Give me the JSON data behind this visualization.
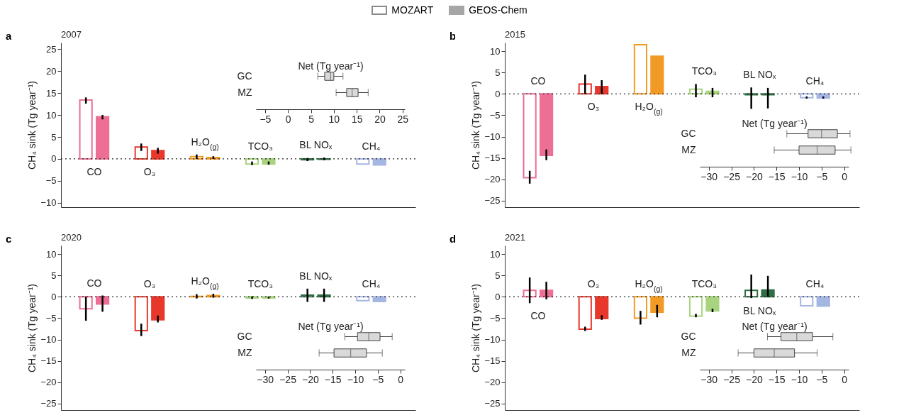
{
  "chart_data": [
    {
      "type": "bar",
      "title": "2007",
      "annotations": [
        "a"
      ],
      "legend": "top",
      "tick_labels": "y",
      "ylabel": "CH₄ sink (Tg year⁻¹)",
      "categories": [
        "CO",
        "O₃",
        "H₂O$_{(g)}$",
        "TCO₃",
        "BL NOₓ",
        "CH₄"
      ],
      "ylim": [
        -11,
        26.5
      ],
      "yticks": [
        -10,
        -5,
        0,
        5,
        10,
        15,
        20,
        25
      ],
      "ref_lines": [
        {
          "axis": "y",
          "value": 0,
          "line_style": "dotted"
        }
      ],
      "series": [
        {
          "name": "MOZART",
          "color": "#8c8c8c",
          "colors": [
            "#ee6f95",
            "#e8382c",
            "#f29a26",
            "#a8d47f",
            "#2f6f45",
            "#a5b6e3"
          ],
          "values": [
            13.4,
            2.7,
            0.5,
            -1.2,
            -0.2,
            -1.2
          ],
          "errors": [
            [
              12.6,
              14
            ],
            [
              1.8,
              3.5
            ],
            [
              0,
              1
            ],
            [
              -1.4,
              -0.6
            ],
            [
              -0.5,
              0.2
            ],
            null
          ]
        },
        {
          "name": "GEOS-Chem",
          "color": "#a6a6a6",
          "colors": [
            "#ee6f95",
            "#e8382c",
            "#f29a26",
            "#a8d47f",
            "#2f6f45",
            "#a5b6e3"
          ],
          "values": [
            9.6,
            1.9,
            0.3,
            -1.2,
            -0.1,
            -1.4
          ],
          "errors": [
            [
              9,
              10
            ],
            [
              1.2,
              2.5
            ],
            [
              0,
              0.6
            ],
            [
              -1.3,
              -0.6
            ],
            [
              -0.3,
              0.3
            ],
            null
          ]
        }
      ]
    },
    {
      "type": "box",
      "orientation": "horizontal",
      "xlabel": "Net (Tg year⁻¹)",
      "categories": [
        "GC",
        "MZ"
      ],
      "xlim": [
        -7,
        25.5
      ],
      "xticks": [
        -5,
        0,
        5,
        10,
        15,
        20,
        25
      ],
      "color": "#d9d9d9",
      "boxes": [
        {
          "low": 6.5,
          "q1": 8,
          "median": 9.3,
          "q3": 10,
          "high": 12
        },
        {
          "low": 10.5,
          "q1": 12.8,
          "median": 14,
          "q3": 15.3,
          "high": 17.5
        }
      ]
    },
    {
      "type": "bar",
      "title": "2015",
      "annotations": [
        "b"
      ],
      "tick_labels": "y",
      "ylabel": "CH₄ sink (Tg year⁻¹)",
      "categories": [
        "CO",
        "O₃",
        "H₂O$_{(g)}$",
        "TCO₃",
        "BL NOₓ",
        "CH₄"
      ],
      "ylim": [
        -26.5,
        12
      ],
      "yticks": [
        -25,
        -20,
        -15,
        -10,
        -5,
        0,
        5,
        10
      ],
      "ref_lines": [
        {
          "axis": "y",
          "value": 0,
          "line_style": "dotted"
        }
      ],
      "series": [
        {
          "colors": [
            "#ee6f95",
            "#e8382c",
            "#f29a26",
            "#a8d47f",
            "#2f6f45",
            "#a5b6e3"
          ],
          "values": [
            -19.6,
            2.3,
            11.5,
            1.1,
            -0.2,
            -0.9
          ],
          "errors": [
            [
              -21,
              -18
            ],
            [
              0,
              4.5
            ],
            null,
            [
              -0.8,
              2.3
            ],
            [
              -3.5,
              1.5
            ],
            [
              -1.1,
              -0.6
            ]
          ]
        },
        {
          "colors": [
            "#ee6f95",
            "#e8382c",
            "#f29a26",
            "#a8d47f",
            "#2f6f45",
            "#a5b6e3"
          ],
          "values": [
            -14.4,
            1.7,
            8.8,
            0.6,
            -0.2,
            -1
          ],
          "errors": [
            [
              -15.5,
              -13
            ],
            [
              0,
              3.2
            ],
            null,
            [
              -0.8,
              1.4
            ],
            [
              -3.4,
              1.4
            ],
            [
              -1.1,
              -0.6
            ]
          ]
        }
      ]
    },
    {
      "type": "box",
      "orientation": "horizontal",
      "xlabel": "Net (Tg year⁻¹)",
      "categories": [
        "GC",
        "MZ"
      ],
      "xlim": [
        -32,
        1
      ],
      "xticks": [
        -30,
        -25,
        -20,
        -15,
        -10,
        -5,
        0
      ],
      "color": "#d9d9d9",
      "boxes": [
        {
          "low": -12.7,
          "q1": -8,
          "median": -5,
          "q3": -1.5,
          "high": 1.3
        },
        {
          "low": -15.5,
          "q1": -10,
          "median": -6,
          "q3": -2,
          "high": 1.5
        }
      ]
    },
    {
      "type": "bar",
      "title": "2020",
      "annotations": [
        "c"
      ],
      "tick_labels": "y",
      "ylabel": "CH₄ sink (Tg year⁻¹)",
      "categories": [
        "CO",
        "O₃",
        "H₂O$_{(g)}$",
        "TCO₃",
        "BL NOₓ",
        "CH₄"
      ],
      "ylim": [
        -26.5,
        12
      ],
      "yticks": [
        -25,
        -20,
        -15,
        -10,
        -5,
        0,
        5,
        10
      ],
      "ref_lines": [
        {
          "axis": "y",
          "value": 0,
          "line_style": "dotted"
        }
      ],
      "series": [
        {
          "colors": [
            "#ee6f95",
            "#e8382c",
            "#f29a26",
            "#a8d47f",
            "#2f6f45",
            "#a5b6e3"
          ],
          "values": [
            -2.8,
            -7.9,
            0.1,
            -0.3,
            0.4,
            -0.9
          ],
          "errors": [
            [
              -5.6,
              0
            ],
            [
              -9.2,
              -6.3
            ],
            [
              -0.4,
              0.6
            ],
            [
              -0.5,
              0.1
            ],
            [
              -1.2,
              1.9
            ],
            null
          ]
        },
        {
          "colors": [
            "#ee6f95",
            "#e8382c",
            "#f29a26",
            "#a8d47f",
            "#2f6f45",
            "#a5b6e3"
          ],
          "values": [
            -1.7,
            -5.4,
            0.3,
            -0.3,
            0.4,
            -1.1
          ],
          "errors": [
            [
              -3.5,
              0.3
            ],
            [
              -6,
              -4.4
            ],
            [
              -0.2,
              0.7
            ],
            [
              -0.4,
              0
            ],
            [
              -1.2,
              1.9
            ],
            null
          ]
        }
      ]
    },
    {
      "type": "box",
      "orientation": "horizontal",
      "xlabel": "Net (Tg year⁻¹)",
      "categories": [
        "GC",
        "MZ"
      ],
      "xlim": [
        -32,
        1
      ],
      "xticks": [
        -30,
        -25,
        -20,
        -15,
        -10,
        -5,
        0
      ],
      "color": "#d9d9d9",
      "boxes": [
        {
          "low": -12.3,
          "q1": -9.5,
          "median": -7,
          "q3": -4.5,
          "high": -1.8
        },
        {
          "low": -18,
          "q1": -14.7,
          "median": -11,
          "q3": -7.5,
          "high": -4
        }
      ]
    },
    {
      "type": "bar",
      "title": "2021",
      "annotations": [
        "d"
      ],
      "tick_labels": "y",
      "ylabel": "CH₄ sink (Tg year⁻¹)",
      "categories": [
        "CO",
        "O₃",
        "H₂O$_{(g)}$",
        "TCO₃",
        "BL NOₓ",
        "CH₄"
      ],
      "ylim": [
        -26.5,
        12
      ],
      "yticks": [
        -25,
        -20,
        -15,
        -10,
        -5,
        0,
        5,
        10
      ],
      "ref_lines": [
        {
          "axis": "y",
          "value": 0,
          "line_style": "dotted"
        }
      ],
      "series": [
        {
          "colors": [
            "#ee6f95",
            "#e8382c",
            "#f29a26",
            "#a8d47f",
            "#2f6f45",
            "#a5b6e3"
          ],
          "values": [
            1.5,
            -7.6,
            -5,
            -4.5,
            1.5,
            -2.1
          ],
          "errors": [
            [
              -1.5,
              4.5
            ],
            [
              -8,
              -7
            ],
            [
              -6.5,
              -3.3
            ],
            [
              -4.8,
              -4
            ],
            [
              -0.3,
              5.2
            ],
            null
          ]
        },
        {
          "colors": [
            "#ee6f95",
            "#e8382c",
            "#f29a26",
            "#a8d47f",
            "#2f6f45",
            "#a5b6e3"
          ],
          "values": [
            1.5,
            -5.1,
            -3.6,
            -3.3,
            1.6,
            -2.2
          ],
          "errors": [
            [
              -0.6,
              3.5
            ],
            [
              -5.4,
              -4.3
            ],
            [
              -4.8,
              -1.9
            ],
            [
              -3.6,
              -2.8
            ],
            [
              0,
              4.9
            ],
            null
          ]
        }
      ]
    },
    {
      "type": "box",
      "orientation": "horizontal",
      "xlabel": "Net (Tg year⁻¹)",
      "categories": [
        "GC",
        "MZ"
      ],
      "xlim": [
        -32,
        1
      ],
      "xticks": [
        -30,
        -25,
        -20,
        -15,
        -10,
        -5,
        0
      ],
      "color": "#d9d9d9",
      "boxes": [
        {
          "low": -17,
          "q1": -14,
          "median": -10.5,
          "q3": -7,
          "high": -2.5
        },
        {
          "low": -23.5,
          "q1": -20,
          "median": -15.5,
          "q3": -11,
          "high": -6
        }
      ]
    }
  ]
}
